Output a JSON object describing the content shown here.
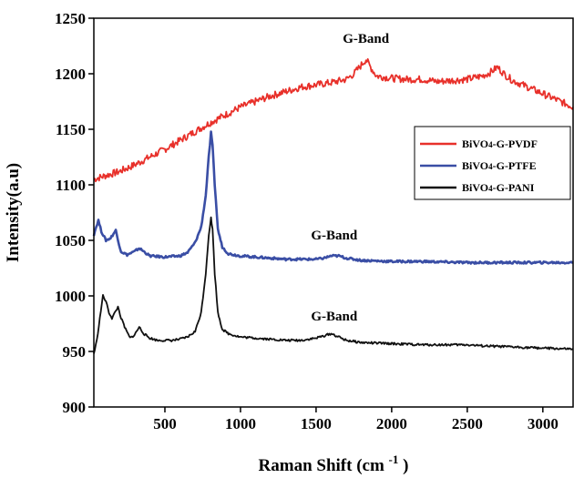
{
  "chart_data": {
    "type": "line",
    "title": "",
    "xlabel": "Raman Shift",
    "xlabel_unit_base": "(cm",
    "xlabel_unit_exp": "-1",
    "xlabel_unit_close": ")",
    "ylabel": "Intensity(a.u)",
    "xlim": [
      30,
      3200
    ],
    "ylim": [
      900,
      1250
    ],
    "xticks": [
      500,
      1000,
      1500,
      2000,
      2500,
      3000
    ],
    "yticks": [
      900,
      950,
      1000,
      1050,
      1100,
      1150,
      1200,
      1250
    ],
    "grid": false,
    "legend_position": "right",
    "series": [
      {
        "name": "BiVO4-G-PVDF",
        "name_parts": {
          "pre": "BiVO",
          "sub": "4",
          "post": "-G-PVDF"
        },
        "color": "#e8302a",
        "x": [
          30,
          100,
          200,
          300,
          400,
          500,
          600,
          700,
          800,
          900,
          1000,
          1100,
          1200,
          1300,
          1400,
          1500,
          1600,
          1700,
          1750,
          1800,
          1830,
          1860,
          1900,
          2000,
          2100,
          2200,
          2300,
          2400,
          2500,
          2600,
          2650,
          2700,
          2750,
          2800,
          2900,
          3000,
          3100,
          3200
        ],
        "y": [
          1105,
          1108,
          1112,
          1118,
          1125,
          1132,
          1140,
          1148,
          1156,
          1163,
          1170,
          1175,
          1180,
          1184,
          1188,
          1190,
          1192,
          1195,
          1200,
          1208,
          1213,
          1206,
          1198,
          1196,
          1195,
          1195,
          1193,
          1194,
          1195,
          1198,
          1201,
          1206,
          1199,
          1194,
          1188,
          1182,
          1176,
          1170
        ]
      },
      {
        "name": "BiVO4-G-PTFE",
        "name_parts": {
          "pre": "BiVO",
          "sub": "4",
          "post": "-G-PTFE"
        },
        "color": "#3a4ea5",
        "x": [
          30,
          45,
          60,
          80,
          110,
          140,
          160,
          175,
          190,
          210,
          250,
          300,
          330,
          360,
          400,
          500,
          600,
          650,
          700,
          740,
          770,
          790,
          805,
          815,
          830,
          850,
          880,
          920,
          1000,
          1100,
          1200,
          1300,
          1400,
          1500,
          1550,
          1600,
          1650,
          1700,
          1800,
          2000,
          2200,
          2500,
          2800,
          3000,
          3200
        ],
        "y": [
          1055,
          1062,
          1068,
          1058,
          1050,
          1052,
          1056,
          1059,
          1050,
          1040,
          1037,
          1040,
          1043,
          1040,
          1036,
          1035,
          1036,
          1039,
          1048,
          1062,
          1090,
          1125,
          1147,
          1135,
          1100,
          1060,
          1044,
          1038,
          1036,
          1035,
          1034,
          1033,
          1033,
          1033,
          1034,
          1036,
          1036,
          1034,
          1032,
          1031,
          1031,
          1030,
          1030,
          1030,
          1030
        ]
      },
      {
        "name": "BiVO4-G-PANI",
        "name_parts": {
          "pre": "BiVO",
          "sub": "4",
          "post": "-G-PANI"
        },
        "color": "#111111",
        "x": [
          30,
          50,
          70,
          90,
          110,
          130,
          150,
          170,
          190,
          210,
          240,
          270,
          300,
          330,
          360,
          400,
          450,
          500,
          550,
          600,
          650,
          700,
          740,
          770,
          790,
          805,
          815,
          830,
          850,
          880,
          920,
          1000,
          1100,
          1200,
          1300,
          1400,
          1500,
          1550,
          1600,
          1650,
          1700,
          1800,
          2000,
          2200,
          2400,
          2500,
          2600,
          2800,
          3000,
          3200
        ],
        "y": [
          948,
          960,
          980,
          1000,
          995,
          985,
          980,
          985,
          990,
          980,
          970,
          962,
          965,
          972,
          966,
          962,
          960,
          960,
          960,
          961,
          963,
          968,
          985,
          1020,
          1055,
          1070,
          1060,
          1020,
          985,
          970,
          966,
          963,
          962,
          961,
          960,
          960,
          962,
          964,
          966,
          963,
          960,
          958,
          957,
          956,
          956,
          956,
          955,
          954,
          953,
          952
        ]
      }
    ],
    "annotations": [
      {
        "text": "G-Band",
        "x": 1830,
        "y": 1228
      },
      {
        "text": "G-Band",
        "x": 1620,
        "y": 1051
      },
      {
        "text": "G-Band",
        "x": 1620,
        "y": 978
      }
    ]
  }
}
